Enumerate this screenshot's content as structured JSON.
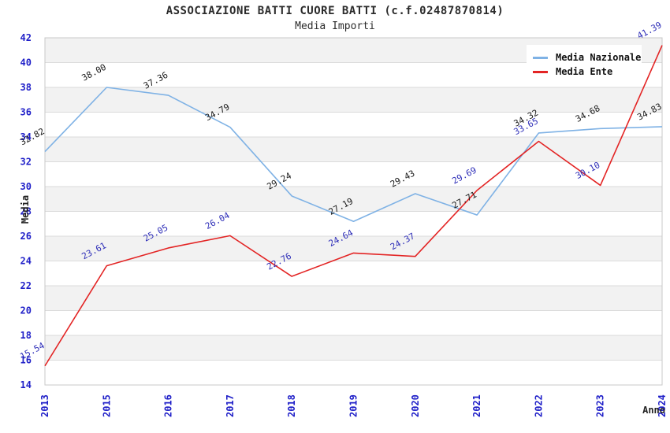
{
  "page": {
    "background": "#ffffff"
  },
  "chart_data": {
    "type": "line",
    "title": "ASSOCIAZIONE BATTI CUORE BATTI (c.f.02487870814)",
    "subtitle": "Media Importi",
    "xlabel": "Anno",
    "ylabel": "Media",
    "categories": [
      "2013",
      "2015",
      "2016",
      "2017",
      "2018",
      "2019",
      "2020",
      "2021",
      "2022",
      "2023",
      "2024"
    ],
    "series": [
      {
        "name": "Media Nazionale",
        "color": "#7FB2E5",
        "label_color": "#1a1a1a",
        "values": [
          32.82,
          38.0,
          37.36,
          34.79,
          29.24,
          27.19,
          29.43,
          27.71,
          34.32,
          34.68,
          34.83
        ]
      },
      {
        "name": "Media Ente",
        "color": "#E32424",
        "label_color": "#2E2EB8",
        "values": [
          15.54,
          23.61,
          25.05,
          26.04,
          22.76,
          24.64,
          24.37,
          29.69,
          33.65,
          30.1,
          41.39
        ]
      }
    ],
    "ylim": [
      14,
      42
    ],
    "y_tick_step": 2,
    "y_ticks": [
      14,
      16,
      18,
      20,
      22,
      24,
      26,
      28,
      30,
      32,
      34,
      36,
      38,
      40,
      42
    ],
    "grid": true,
    "band_fill": true,
    "legend_position": "top-right",
    "data_labels": true,
    "data_label_decimals": 2
  },
  "style": {
    "tick_label_color": "#1F1FC8",
    "band_color": "#F2F2F2",
    "grid_color": "#DBDBDB",
    "plot_border_color": "#C8C8C8",
    "plot_background": "#ffffff"
  }
}
